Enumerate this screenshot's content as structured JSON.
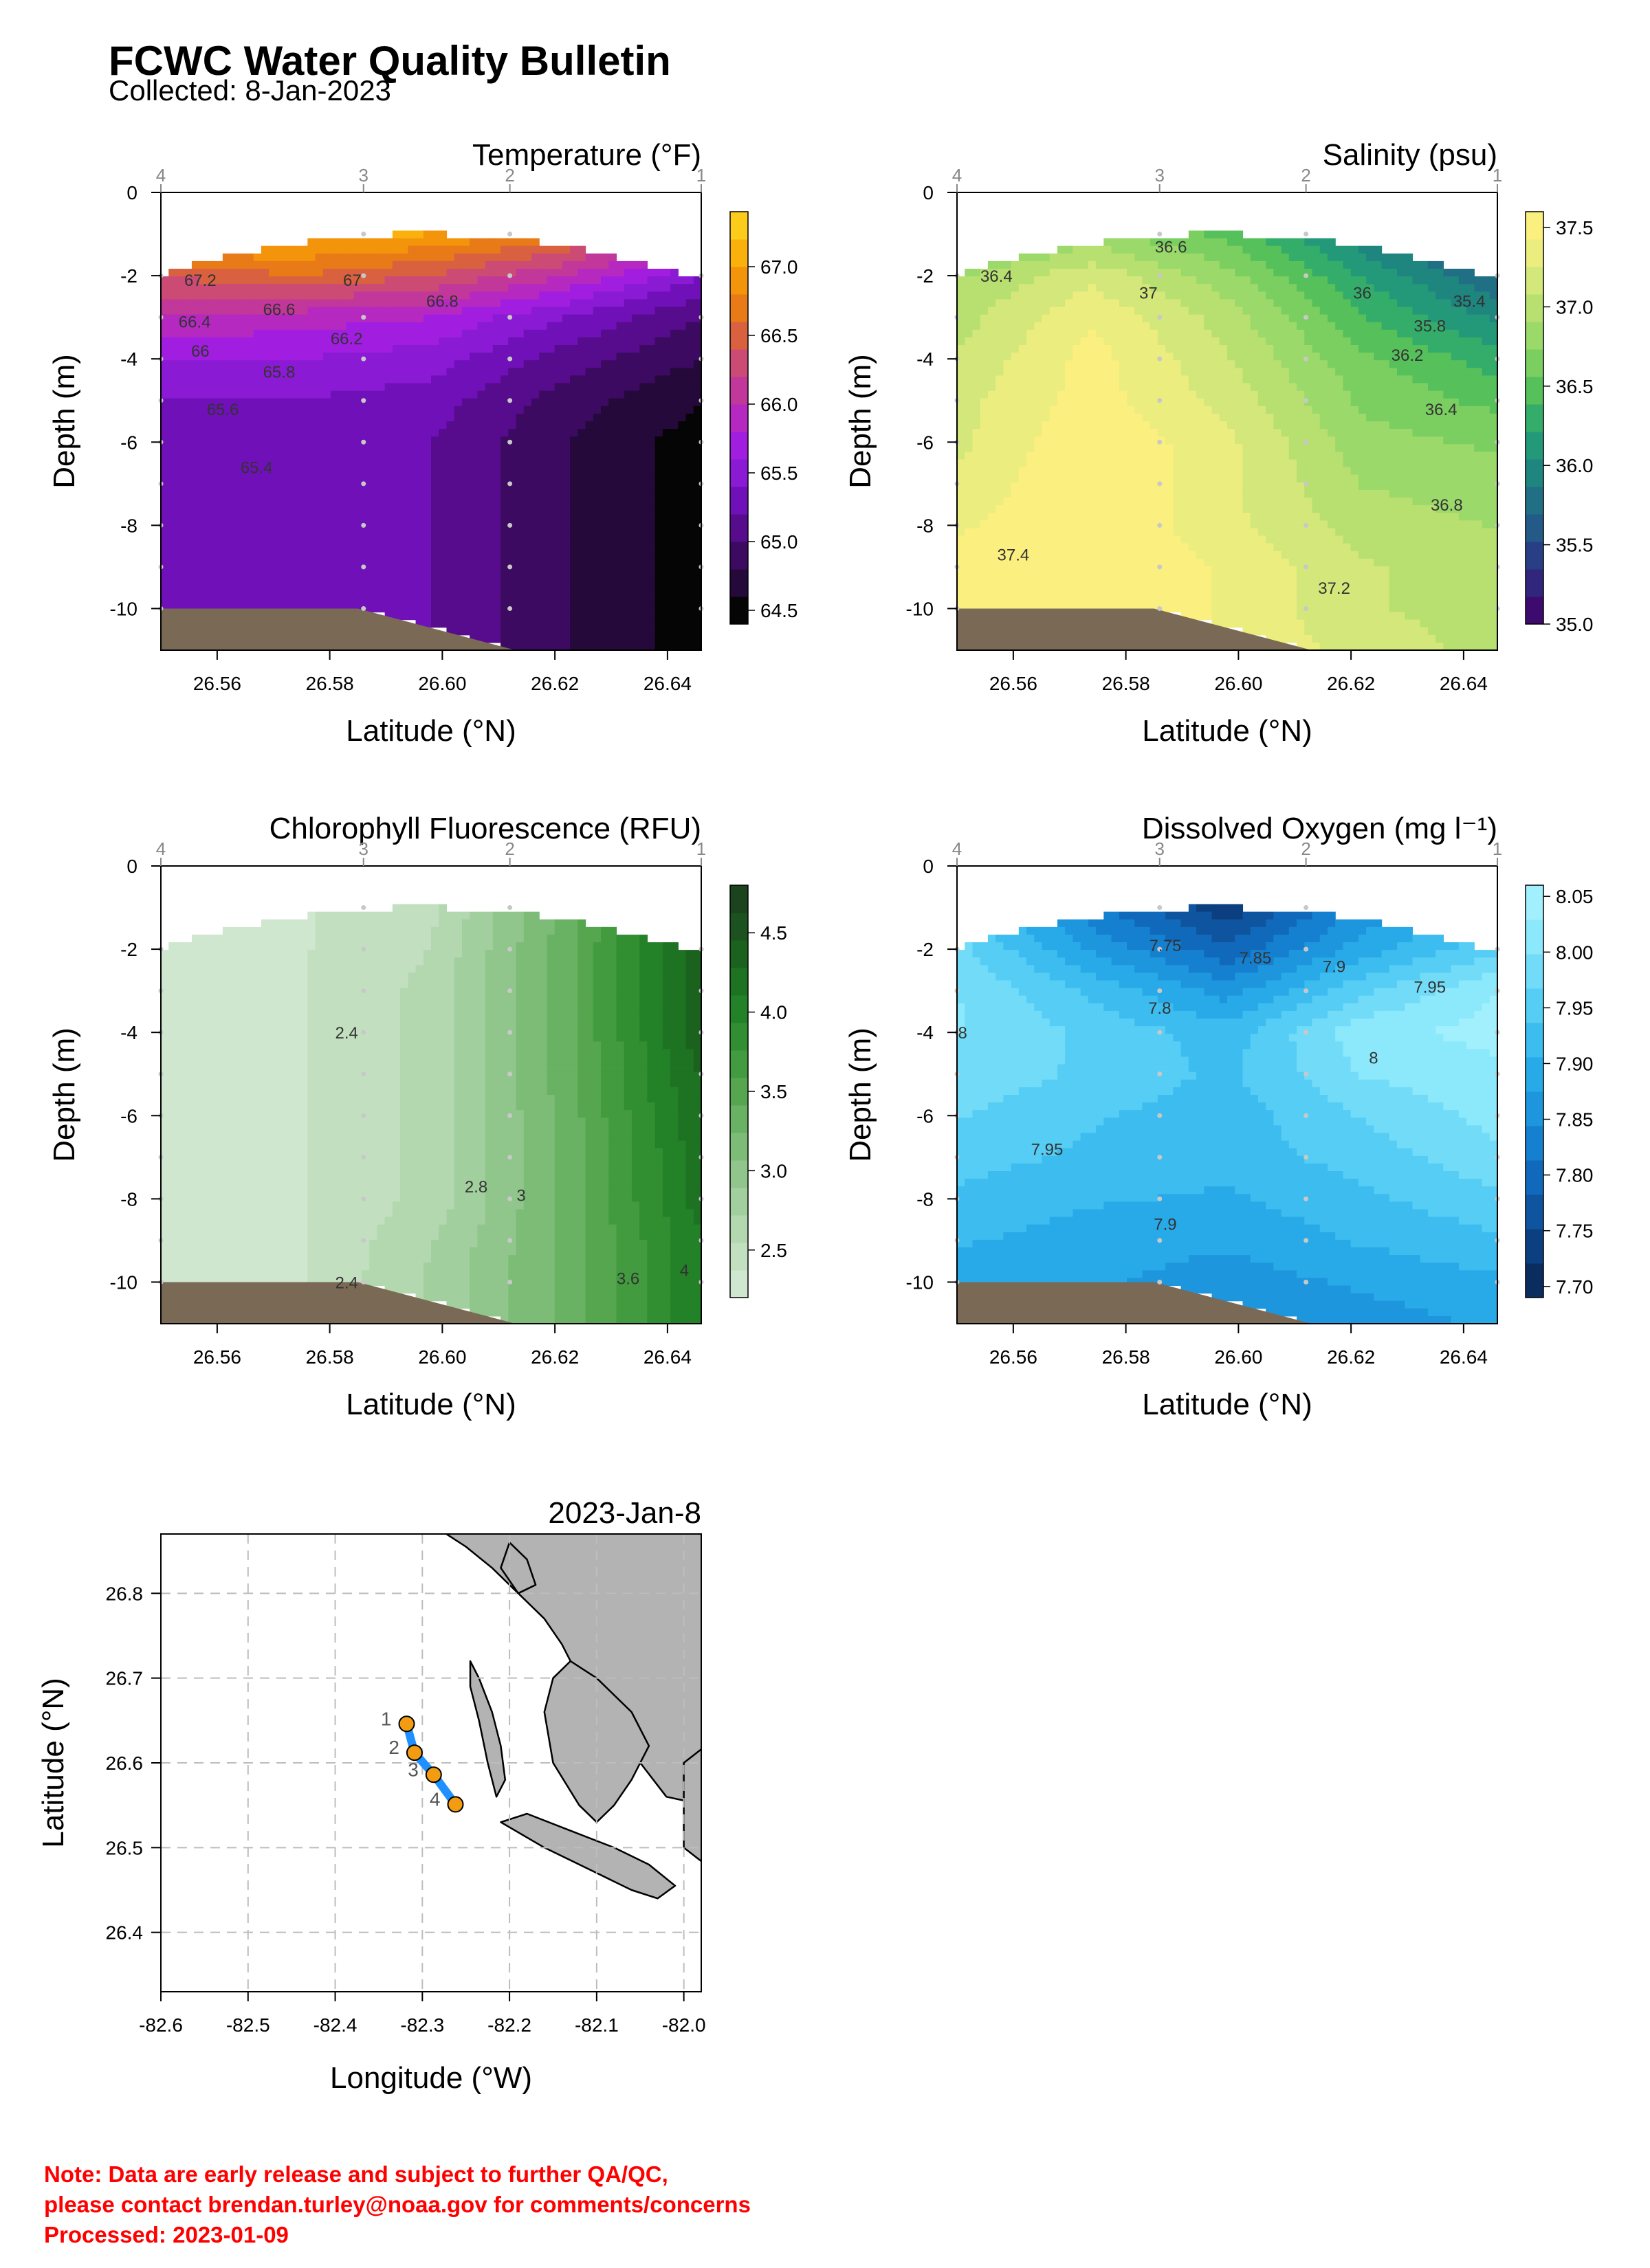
{
  "header": {
    "title": "FCWC Water Quality Bulletin",
    "subtitle": "Collected: 8-Jan-2023"
  },
  "footer": {
    "line1": "Note: Data are early release and subject to further QA/QC,",
    "line2": "please contact brendan.turley@noaa.gov for comments/concerns",
    "line3": "Processed:  2023-01-09"
  },
  "colors": {
    "seafloor": "#7a6a55",
    "land": "#b3b3b3",
    "transect": "#1e90ff",
    "station": "#f39c12",
    "note": "#ff0000"
  },
  "chart_data": [
    {
      "type": "heatmap",
      "title": "Temperature (°F)",
      "xlabel": "Latitude (°N)",
      "ylabel": "Depth (m)",
      "xlim": [
        26.55,
        26.646
      ],
      "ylim": [
        -11,
        0
      ],
      "xticks": [
        "26.56",
        "26.58",
        "26.60",
        "26.62",
        "26.64"
      ],
      "yticks": [
        "0",
        "-2",
        "-4",
        "-6",
        "-8",
        "-10"
      ],
      "stations": [
        {
          "label": "4",
          "lat": 26.55
        },
        {
          "label": "3",
          "lat": 26.586
        },
        {
          "label": "2",
          "lat": 26.612
        },
        {
          "label": "1",
          "lat": 26.646
        }
      ],
      "colorbar": {
        "ticks": [
          "67.0",
          "66.5",
          "66.0",
          "65.5",
          "65.0",
          "64.5"
        ],
        "range": [
          64.4,
          67.4
        ],
        "palette": [
          "#050505",
          "#24093a",
          "#3d0a62",
          "#560c8c",
          "#7010b8",
          "#8b1ad4",
          "#a11ee0",
          "#b629c0",
          "#c2379a",
          "#cc4b75",
          "#d9613f",
          "#e87a17",
          "#f3940a",
          "#fbb10b",
          "#fdcb1a"
        ]
      },
      "contour_labels": [
        {
          "text": "67.2",
          "lat": 26.557,
          "depth": -2.1
        },
        {
          "text": "67",
          "lat": 26.584,
          "depth": -2.1
        },
        {
          "text": "66.8",
          "lat": 26.6,
          "depth": -2.6
        },
        {
          "text": "66.6",
          "lat": 26.571,
          "depth": -2.8
        },
        {
          "text": "66.4",
          "lat": 26.556,
          "depth": -3.1
        },
        {
          "text": "66.2",
          "lat": 26.583,
          "depth": -3.5
        },
        {
          "text": "66",
          "lat": 26.557,
          "depth": -3.8
        },
        {
          "text": "65.8",
          "lat": 26.571,
          "depth": -4.3
        },
        {
          "text": "65.6",
          "lat": 26.561,
          "depth": -5.2
        },
        {
          "text": "65.4",
          "lat": 26.567,
          "depth": -6.6
        }
      ],
      "grid": [
        [
          66.4,
          66.5,
          66.6,
          66.5,
          66.3
        ],
        [
          67.2,
          67.1,
          67.0,
          66.7,
          66.0
        ],
        [
          66.4,
          66.6,
          66.4,
          66.0,
          65.4
        ],
        [
          66.0,
          65.9,
          65.8,
          65.4,
          65.0
        ],
        [
          65.6,
          65.6,
          65.5,
          65.1,
          64.8
        ],
        [
          65.4,
          65.4,
          65.3,
          64.9,
          64.6
        ],
        [
          65.3,
          65.3,
          65.2,
          64.8,
          64.5
        ],
        [
          65.3,
          65.3,
          65.2,
          64.8,
          64.5
        ],
        [
          65.3,
          65.3,
          65.2,
          64.8,
          64.5
        ],
        [
          65.3,
          65.3,
          65.2,
          64.8,
          64.5
        ],
        [
          65.3,
          65.3,
          65.2,
          64.8,
          64.5
        ],
        [
          65.3,
          65.3,
          65.2,
          64.8,
          64.5
        ]
      ]
    },
    {
      "type": "heatmap",
      "title": "Salinity (psu)",
      "xlabel": "Latitude (°N)",
      "ylabel": "Depth (m)",
      "xlim": [
        26.55,
        26.646
      ],
      "ylim": [
        -11,
        0
      ],
      "xticks": [
        "26.56",
        "26.58",
        "26.60",
        "26.62",
        "26.64"
      ],
      "yticks": [
        "0",
        "-2",
        "-4",
        "-6",
        "-8",
        "-10"
      ],
      "stations": [
        {
          "label": "4",
          "lat": 26.55
        },
        {
          "label": "3",
          "lat": 26.586
        },
        {
          "label": "2",
          "lat": 26.612
        },
        {
          "label": "1",
          "lat": 26.646
        }
      ],
      "colorbar": {
        "ticks": [
          "37.5",
          "37.0",
          "36.5",
          "36.0",
          "35.5",
          "35.0"
        ],
        "range": [
          35.0,
          37.6
        ],
        "palette": [
          "#3d0a6e",
          "#31257c",
          "#283f86",
          "#245a88",
          "#216f85",
          "#1e857f",
          "#23997a",
          "#34ad6a",
          "#56c05b",
          "#7bcf60",
          "#9bd96a",
          "#b8e070",
          "#d3e77a",
          "#eced7f",
          "#fbef80"
        ]
      },
      "contour_labels": [
        {
          "text": "36.4",
          "lat": 26.557,
          "depth": -2.0
        },
        {
          "text": "36.6",
          "lat": 26.588,
          "depth": -1.3
        },
        {
          "text": "37",
          "lat": 26.584,
          "depth": -2.4
        },
        {
          "text": "36",
          "lat": 26.622,
          "depth": -2.4
        },
        {
          "text": "35.8",
          "lat": 26.634,
          "depth": -3.2
        },
        {
          "text": "35.4",
          "lat": 26.641,
          "depth": -2.6
        },
        {
          "text": "36.2",
          "lat": 26.63,
          "depth": -3.9
        },
        {
          "text": "36.4",
          "lat": 26.636,
          "depth": -5.2
        },
        {
          "text": "36.8",
          "lat": 26.637,
          "depth": -7.5
        },
        {
          "text": "37.2",
          "lat": 26.617,
          "depth": -9.5
        },
        {
          "text": "37.4",
          "lat": 26.56,
          "depth": -8.7
        }
      ],
      "grid": [
        [
          36.5,
          36.7,
          36.6,
          36.1,
          35.5
        ],
        [
          36.4,
          36.8,
          36.5,
          35.9,
          35.3
        ],
        [
          36.9,
          37.2,
          36.8,
          36.2,
          35.7
        ],
        [
          37.0,
          37.4,
          37.0,
          36.4,
          36.0
        ],
        [
          37.1,
          37.5,
          37.1,
          36.6,
          36.3
        ],
        [
          37.2,
          37.5,
          37.2,
          36.7,
          36.5
        ],
        [
          37.2,
          37.6,
          37.3,
          36.8,
          36.7
        ],
        [
          37.3,
          37.6,
          37.3,
          36.9,
          36.8
        ],
        [
          37.4,
          37.6,
          37.3,
          37.0,
          36.9
        ],
        [
          37.5,
          37.6,
          37.4,
          37.1,
          37.0
        ],
        [
          37.5,
          37.6,
          37.4,
          37.1,
          37.0
        ],
        [
          37.5,
          37.6,
          37.4,
          37.2,
          37.0
        ]
      ]
    },
    {
      "type": "heatmap",
      "title": "Chlorophyll Fluorescence (RFU)",
      "xlabel": "Latitude (°N)",
      "ylabel": "Depth (m)",
      "xlim": [
        26.55,
        26.646
      ],
      "ylim": [
        -11,
        0
      ],
      "xticks": [
        "26.56",
        "26.58",
        "26.60",
        "26.62",
        "26.64"
      ],
      "yticks": [
        "0",
        "-2",
        "-4",
        "-6",
        "-8",
        "-10"
      ],
      "stations": [
        {
          "label": "4",
          "lat": 26.55
        },
        {
          "label": "3",
          "lat": 26.586
        },
        {
          "label": "2",
          "lat": 26.612
        },
        {
          "label": "1",
          "lat": 26.646
        }
      ],
      "colorbar": {
        "ticks": [
          "4.5",
          "4.0",
          "3.5",
          "3.0",
          "2.5"
        ],
        "range": [
          2.2,
          4.8
        ],
        "palette": [
          "#cfe6cf",
          "#c2e0c0",
          "#b3d8b0",
          "#a2cf9e",
          "#90c68b",
          "#7dbc77",
          "#69b163",
          "#56a650",
          "#429b3f",
          "#318f31",
          "#238228",
          "#1d7322",
          "#1c621f",
          "#1c521f",
          "#1b431d"
        ]
      },
      "contour_labels": [
        {
          "text": "2.4",
          "lat": 26.583,
          "depth": -4.0
        },
        {
          "text": "2.8",
          "lat": 26.606,
          "depth": -7.7
        },
        {
          "text": "3",
          "lat": 26.614,
          "depth": -7.9
        },
        {
          "text": "3.6",
          "lat": 26.633,
          "depth": -9.9
        },
        {
          "text": "4",
          "lat": 26.643,
          "depth": -9.7
        },
        {
          "text": "2.4",
          "lat": 26.583,
          "depth": -10.0
        }
      ],
      "grid": [
        [
          2.3,
          2.35,
          2.5,
          3.3,
          4.4
        ],
        [
          2.3,
          2.35,
          2.5,
          3.3,
          4.4
        ],
        [
          2.3,
          2.35,
          2.55,
          3.35,
          4.4
        ],
        [
          2.3,
          2.35,
          2.6,
          3.35,
          4.4
        ],
        [
          2.3,
          2.35,
          2.6,
          3.35,
          4.4
        ],
        [
          2.3,
          2.35,
          2.6,
          3.35,
          4.3
        ],
        [
          2.3,
          2.35,
          2.6,
          3.3,
          4.3
        ],
        [
          2.3,
          2.35,
          2.6,
          3.3,
          4.2
        ],
        [
          2.3,
          2.35,
          2.6,
          3.3,
          4.2
        ],
        [
          2.3,
          2.35,
          2.7,
          3.3,
          4.1
        ],
        [
          2.3,
          2.35,
          2.75,
          3.3,
          4.1
        ],
        [
          2.3,
          2.35,
          2.75,
          3.3,
          4.1
        ]
      ]
    },
    {
      "type": "heatmap",
      "title": "Dissolved Oxygen (mg l⁻¹)",
      "xlabel": "Latitude (°N)",
      "ylabel": "Depth (m)",
      "xlim": [
        26.55,
        26.646
      ],
      "ylim": [
        -11,
        0
      ],
      "xticks": [
        "26.56",
        "26.58",
        "26.60",
        "26.62",
        "26.64"
      ],
      "yticks": [
        "0",
        "-2",
        "-4",
        "-6",
        "-8",
        "-10"
      ],
      "stations": [
        {
          "label": "4",
          "lat": 26.55
        },
        {
          "label": "3",
          "lat": 26.586
        },
        {
          "label": "2",
          "lat": 26.612
        },
        {
          "label": "1",
          "lat": 26.646
        }
      ],
      "colorbar": {
        "ticks": [
          "8.05",
          "8.00",
          "7.95",
          "7.90",
          "7.85",
          "7.80",
          "7.75",
          "7.70"
        ],
        "range": [
          7.69,
          8.06
        ],
        "palette": [
          "#0a2c5f",
          "#0c3f80",
          "#0e549f",
          "#1169bb",
          "#1680d0",
          "#1e96de",
          "#28aae8",
          "#3cbcef",
          "#56cdf4",
          "#72dcf8",
          "#8ce8fb",
          "#a2f0fd"
        ]
      },
      "contour_labels": [
        {
          "text": "7.75",
          "lat": 26.587,
          "depth": -1.9
        },
        {
          "text": "7.85",
          "lat": 26.603,
          "depth": -2.2
        },
        {
          "text": "7.8",
          "lat": 26.586,
          "depth": -3.4
        },
        {
          "text": "7.9",
          "lat": 26.617,
          "depth": -2.4
        },
        {
          "text": "7.95",
          "lat": 26.634,
          "depth": -2.9
        },
        {
          "text": "8",
          "lat": 26.624,
          "depth": -4.6
        },
        {
          "text": "8",
          "lat": 26.551,
          "depth": -4.0
        },
        {
          "text": "7.95",
          "lat": 26.566,
          "depth": -6.8
        },
        {
          "text": "7.9",
          "lat": 26.587,
          "depth": -8.6
        }
      ],
      "grid": [
        [
          7.93,
          7.85,
          7.74,
          7.86,
          7.96
        ],
        [
          7.95,
          7.82,
          7.73,
          7.85,
          7.94
        ],
        [
          7.98,
          7.87,
          7.79,
          7.89,
          7.96
        ],
        [
          8.0,
          7.93,
          7.86,
          7.96,
          8.03
        ],
        [
          8.0,
          7.96,
          7.92,
          8.02,
          8.04
        ],
        [
          7.99,
          7.96,
          7.93,
          8.0,
          8.02
        ],
        [
          7.97,
          7.94,
          7.92,
          7.97,
          8.01
        ],
        [
          7.95,
          7.93,
          7.92,
          7.95,
          7.99
        ],
        [
          7.93,
          7.91,
          7.9,
          7.93,
          7.96
        ],
        [
          7.91,
          7.89,
          7.88,
          7.91,
          7.93
        ],
        [
          7.89,
          7.88,
          7.86,
          7.88,
          7.9
        ],
        [
          7.88,
          7.87,
          7.85,
          7.86,
          7.88
        ]
      ]
    },
    {
      "type": "scatter",
      "title": "2023-Jan-8",
      "xlabel": "Longitude (°W)",
      "ylabel": "Latitude (°N)",
      "xlim": [
        -82.6,
        -81.98
      ],
      "ylim": [
        26.33,
        26.87
      ],
      "xticks": [
        "-82.6",
        "-82.5",
        "-82.4",
        "-82.3",
        "-82.2",
        "-82.1",
        "-82.0"
      ],
      "yticks": [
        "26.4",
        "26.5",
        "26.6",
        "26.7",
        "26.8"
      ],
      "grid": true,
      "points": [
        {
          "label": "1",
          "lon": -82.318,
          "lat": 26.646
        },
        {
          "label": "2",
          "lon": -82.309,
          "lat": 26.612
        },
        {
          "label": "3",
          "lon": -82.287,
          "lat": 26.586
        },
        {
          "label": "4",
          "lon": -82.262,
          "lat": 26.551
        }
      ]
    }
  ]
}
